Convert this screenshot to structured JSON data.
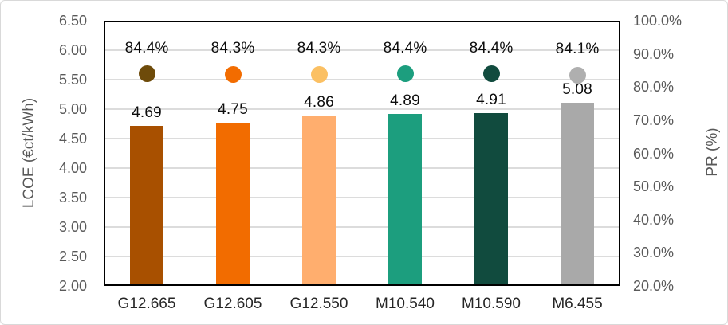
{
  "chart_data": {
    "type": "bar",
    "subtype": "bar-with-scatter-overlay-combo",
    "categories": [
      "G12.665",
      "G12.605",
      "G12.550",
      "M10.540",
      "M10.590",
      "M6.455"
    ],
    "series": [
      {
        "name": "LCOE",
        "type": "bar",
        "axis": "left",
        "values": [
          4.69,
          4.75,
          4.86,
          4.89,
          4.91,
          5.08
        ],
        "labels": [
          "4.69",
          "4.75",
          "4.86",
          "4.89",
          "4.91",
          "5.08"
        ],
        "colors": [
          "#A85000",
          "#F26C00",
          "#FFAE6E",
          "#1C9E7E",
          "#114B3E",
          "#A9A9A9"
        ]
      },
      {
        "name": "PR",
        "type": "scatter",
        "axis": "right",
        "values": [
          84.4,
          84.3,
          84.3,
          84.4,
          84.4,
          84.1
        ],
        "labels": [
          "84.4%",
          "84.3%",
          "84.3%",
          "84.4%",
          "84.4%",
          "84.1%"
        ],
        "colors": [
          "#6E4B0A",
          "#F26C00",
          "#FBC063",
          "#1C9E7E",
          "#114B3E",
          "#AFAFAF"
        ]
      }
    ],
    "left_axis": {
      "title": "LCOE (€ct/kWh)",
      "min": 2.0,
      "max": 6.5,
      "step": 0.5,
      "tick_labels": [
        "6.50",
        "6.00",
        "5.50",
        "5.00",
        "4.50",
        "4.00",
        "3.50",
        "3.00",
        "2.50",
        "2.00"
      ]
    },
    "right_axis": {
      "title": "PR (%)",
      "min": 20,
      "max": 100,
      "step": 10,
      "tick_labels": [
        "100.0%",
        "90.0%",
        "80.0%",
        "70.0%",
        "60.0%",
        "50.0%",
        "40.0%",
        "30.0%",
        "20.0%"
      ]
    },
    "grid": true,
    "legend": "none",
    "style_colors": {
      "gridline": "#DCDCDC",
      "plot_border": "#000000",
      "tick_text": "#595959",
      "axis_title_text": "#595959",
      "data_label_text": "#0D0D0D",
      "chart_border": "#D9D9D9",
      "background": "#FFFFFF"
    }
  }
}
